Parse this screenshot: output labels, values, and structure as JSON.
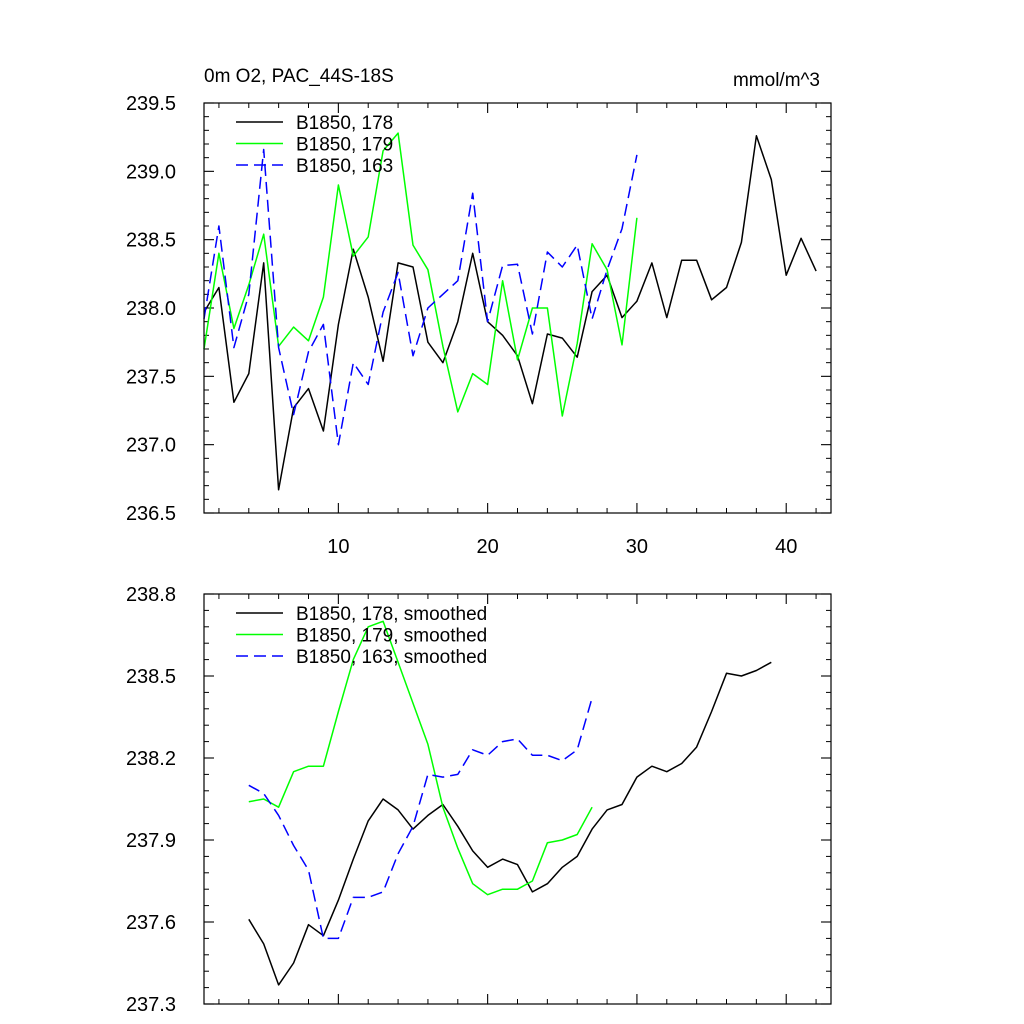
{
  "chart_data": [
    {
      "type": "line",
      "title_left": "0m O2, PAC_44S-18S",
      "title_right": "mmol/m^3",
      "xlim": [
        1,
        43
      ],
      "ylim": [
        236.5,
        239.5
      ],
      "xticks": [
        10,
        20,
        30,
        40
      ],
      "xtick_labels": [
        "10",
        "20",
        "30",
        "40"
      ],
      "yticks": [
        236.5,
        237.0,
        237.5,
        238.0,
        238.5,
        239.0,
        239.5
      ],
      "ytick_labels": [
        "236.5",
        "237.0",
        "237.5",
        "238.0",
        "238.5",
        "239.0",
        "239.5"
      ],
      "legend_position": "top-left",
      "series": [
        {
          "name": "B1850, 178",
          "color": "#000000",
          "dash": "solid",
          "x_start": 1,
          "values": [
            237.97,
            238.15,
            237.31,
            237.52,
            238.33,
            236.67,
            237.27,
            237.41,
            237.1,
            237.88,
            238.43,
            238.08,
            237.61,
            238.33,
            238.3,
            237.75,
            237.6,
            237.9,
            238.4,
            237.9,
            237.8,
            237.65,
            237.3,
            237.81,
            237.78,
            237.64,
            238.12,
            238.24,
            237.93,
            238.05,
            238.33,
            237.93,
            238.35,
            238.35,
            238.06,
            238.15,
            238.48,
            239.26,
            238.94,
            238.24,
            238.51,
            238.27
          ]
        },
        {
          "name": "B1850, 179",
          "color": "#00ff00",
          "dash": "solid",
          "x_start": 1,
          "values": [
            237.7,
            238.4,
            237.85,
            238.17,
            238.54,
            237.72,
            237.86,
            237.76,
            238.08,
            238.9,
            238.38,
            238.52,
            239.15,
            239.28,
            238.46,
            238.28,
            237.72,
            237.24,
            237.52,
            237.44,
            238.2,
            237.62,
            238.0,
            238.0,
            237.21,
            237.74,
            238.47,
            238.28,
            237.73,
            238.66
          ]
        },
        {
          "name": "B1850, 163",
          "color": "#0000ff",
          "dash": "dashed",
          "x_start": 1,
          "values": [
            237.92,
            238.6,
            237.71,
            238.1,
            239.16,
            237.71,
            237.22,
            237.68,
            237.88,
            237.0,
            237.6,
            237.44,
            237.97,
            238.26,
            237.65,
            238.0,
            238.1,
            238.2,
            238.84,
            237.9,
            238.31,
            238.32,
            237.81,
            238.41,
            238.3,
            238.46,
            237.92,
            238.28,
            238.58,
            239.12
          ]
        }
      ]
    },
    {
      "type": "line",
      "xlim": [
        1,
        43
      ],
      "ylim": [
        237.3,
        238.8
      ],
      "xticks": [
        10,
        20,
        30,
        40
      ],
      "yticks": [
        237.3,
        237.6,
        237.9,
        238.2,
        238.5,
        238.8
      ],
      "ytick_labels": [
        "237.3",
        "237.6",
        "237.9",
        "238.2",
        "238.5",
        "238.8"
      ],
      "legend_position": "top-left",
      "series": [
        {
          "name": "B1850, 178, smoothed",
          "color": "#000000",
          "dash": "solid",
          "x_start": 4,
          "values": [
            237.61,
            237.52,
            237.37,
            237.45,
            237.59,
            237.55,
            237.68,
            237.83,
            237.97,
            238.05,
            238.01,
            237.94,
            237.99,
            238.03,
            237.95,
            237.86,
            237.8,
            237.83,
            237.81,
            237.71,
            237.74,
            237.8,
            237.84,
            237.94,
            238.01,
            238.03,
            238.13,
            238.17,
            238.15,
            238.18,
            238.24,
            238.37,
            238.51,
            238.5,
            238.52,
            238.55
          ]
        },
        {
          "name": "B1850, 179, smoothed",
          "color": "#00ff00",
          "dash": "solid",
          "x_start": 4,
          "values": [
            238.04,
            238.05,
            238.02,
            238.15,
            238.17,
            238.17,
            238.37,
            238.56,
            238.68,
            238.7,
            238.55,
            238.4,
            238.25,
            238.02,
            237.87,
            237.74,
            237.7,
            237.72,
            237.72,
            237.75,
            237.89,
            237.9,
            237.92,
            238.02
          ]
        },
        {
          "name": "B1850, 163, smoothed",
          "color": "#0000ff",
          "dash": "dashed",
          "x_start": 4,
          "values": [
            238.1,
            238.07,
            237.99,
            237.88,
            237.79,
            237.54,
            237.54,
            237.69,
            237.69,
            237.71,
            237.85,
            237.95,
            238.14,
            238.13,
            238.14,
            238.23,
            238.21,
            238.26,
            238.27,
            238.21,
            238.21,
            238.19,
            238.23,
            238.42
          ]
        }
      ]
    }
  ]
}
